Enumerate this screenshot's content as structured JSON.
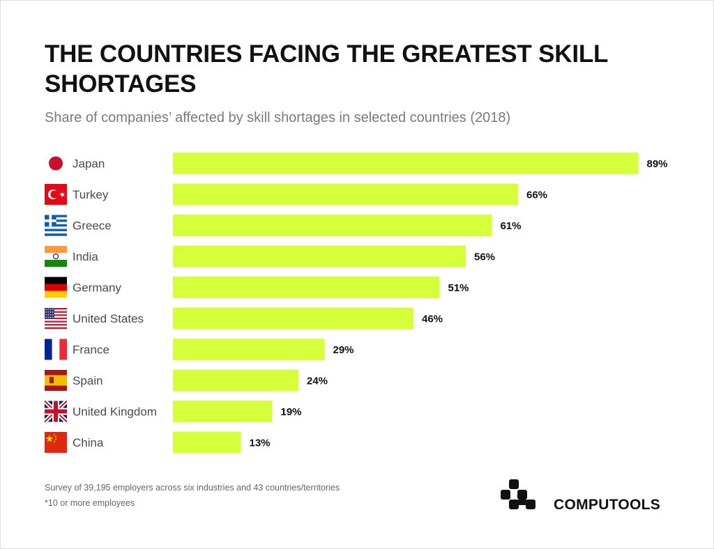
{
  "title": "THE COUNTRIES FACING THE GREATEST SKILL SHORTAGES",
  "subtitle": "Share of companies’ affected by skill shortages in selected countries (2018)",
  "footnotes": [
    "Survey of 39,195 employers across six industries and 43 countries/territories",
    "*10 or more employees"
  ],
  "brand": {
    "name": "COMPUTOOLS",
    "logo_icon": "computools-logo-icon"
  },
  "colors": {
    "bar": "#d4ff3a",
    "text": "#111111",
    "label": "#4a4a4a"
  },
  "chart_data": {
    "type": "bar",
    "orientation": "horizontal",
    "unit": "%",
    "xlim": [
      0,
      100
    ],
    "grid": false,
    "categories": [
      "Japan",
      "Turkey",
      "Greece",
      "India",
      "Germany",
      "United States",
      "France",
      "Spain",
      "United Kingdom",
      "China"
    ],
    "flags": [
      "japan-flag-icon",
      "turkey-flag-icon",
      "greece-flag-icon",
      "india-flag-icon",
      "germany-flag-icon",
      "usa-flag-icon",
      "france-flag-icon",
      "spain-flag-icon",
      "uk-flag-icon",
      "china-flag-icon"
    ],
    "values": [
      89,
      66,
      61,
      56,
      51,
      46,
      29,
      24,
      19,
      13
    ],
    "value_labels": [
      "89%",
      "66%",
      "61%",
      "56%",
      "51%",
      "46%",
      "29%",
      "24%",
      "19%",
      "13%"
    ]
  }
}
